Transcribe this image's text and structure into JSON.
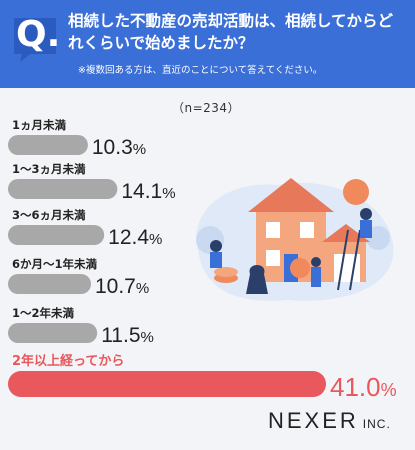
{
  "header": {
    "q_label": "Q.",
    "title": "相続した不動産の売却活動は、相続してからどれくらいで始めましたか？",
    "note": "※複数回ある方は、直近のことについて答えてください。"
  },
  "sample_size": "（n=234）",
  "brand": {
    "name": "NEXER",
    "suffix": "INC."
  },
  "colors": {
    "header": "#3a6fd8",
    "bar_default": "#a8a8a8",
    "bar_highlight": "#e8585c",
    "label_highlight": "#e8585c",
    "text": "#222222"
  },
  "chart_data": {
    "type": "bar",
    "orientation": "horizontal",
    "categories": [
      "1ヵ月未満",
      "1〜3ヵ月未満",
      "3〜6ヵ月未満",
      "6か月〜1年未満",
      "1〜2年未満",
      "2年以上経ってから"
    ],
    "values": [
      10.3,
      14.1,
      12.4,
      10.7,
      11.5,
      41.0
    ],
    "value_labels": [
      "10.3",
      "14.1",
      "12.4",
      "10.7",
      "11.5",
      "41.0"
    ],
    "unit": "%",
    "highlight_index": 5,
    "xlim": [
      0,
      41.0
    ],
    "grid": false
  }
}
